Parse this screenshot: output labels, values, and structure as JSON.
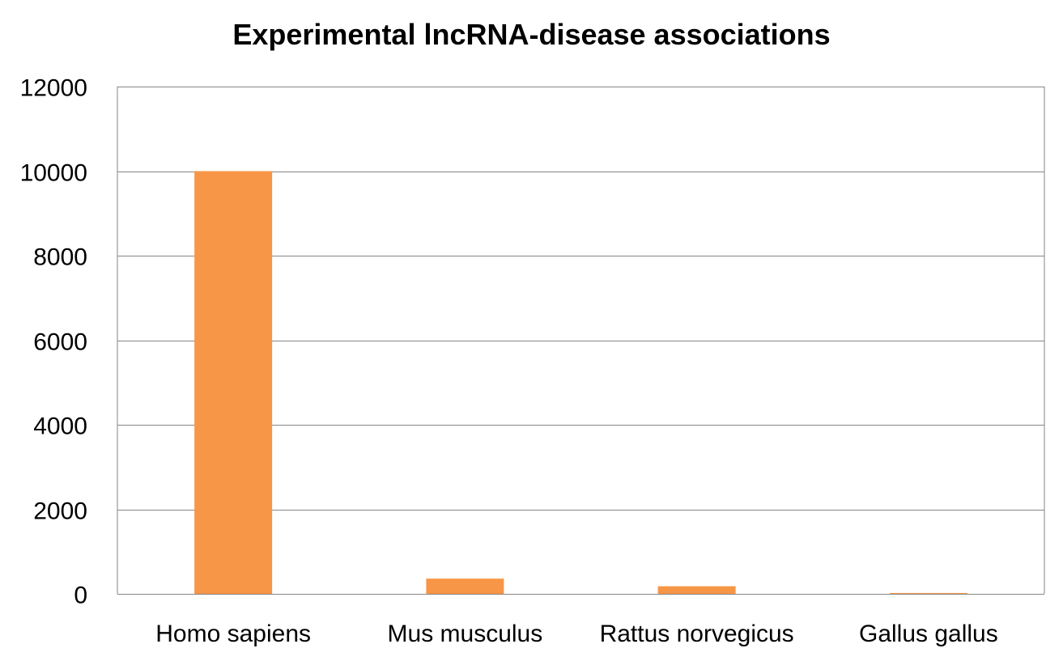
{
  "chart_data": {
    "type": "bar",
    "title": "Experimental lncRNA-disease associations",
    "categories": [
      "Homo sapiens",
      "Mus musculus",
      "Rattus norvegicus",
      "Gallus gallus"
    ],
    "values": [
      10000,
      360,
      180,
      20
    ],
    "xlabel": "",
    "ylabel": "",
    "ylim": [
      0,
      12000
    ],
    "yticks": [
      "0",
      "2000",
      "4000",
      "6000",
      "8000",
      "10000",
      "12000"
    ],
    "grid": true,
    "legend": "none",
    "bar_color": "#F79646"
  }
}
